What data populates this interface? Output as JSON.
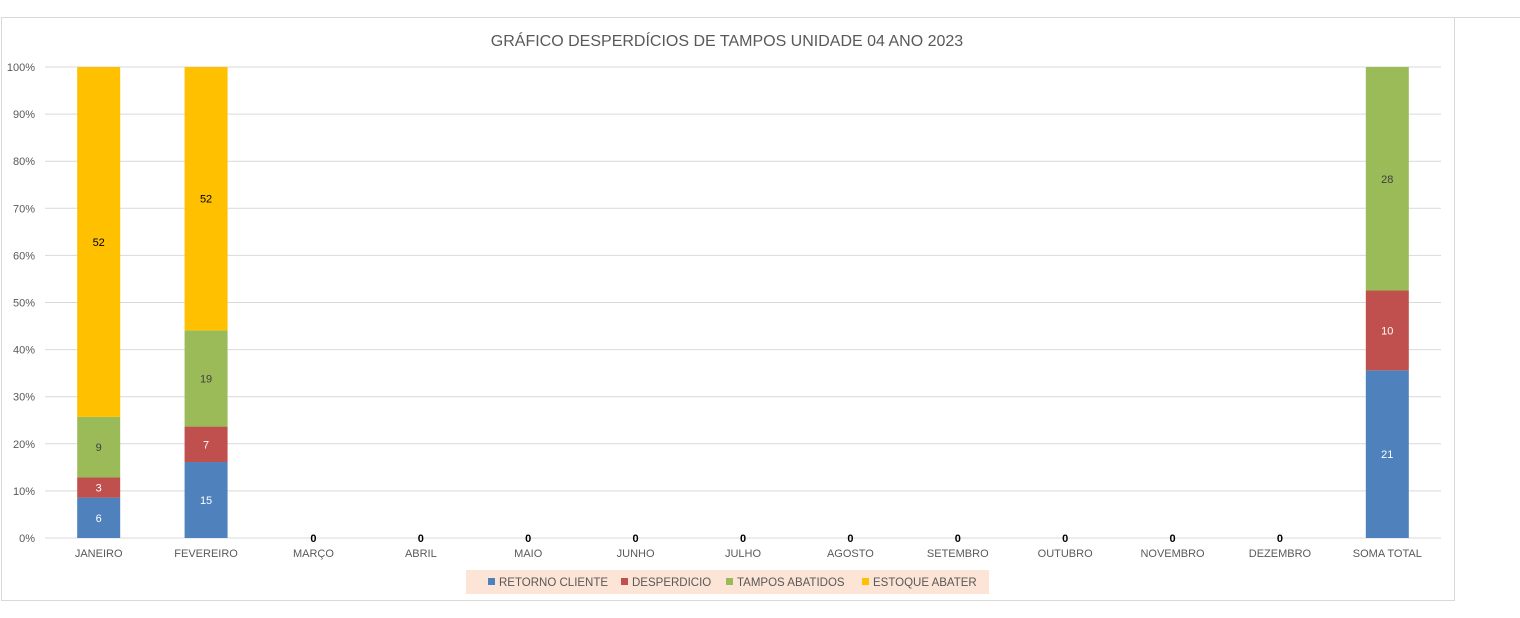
{
  "chart_data": {
    "type": "bar",
    "stacking": "percent",
    "title": "GRÁFICO DESPERDÍCIOS DE TAMPOS UNIDADE 04 ANO 2023",
    "xlabel": "",
    "ylabel": "",
    "ylim": [
      0,
      100
    ],
    "y_ticks": [
      "0%",
      "10%",
      "20%",
      "30%",
      "40%",
      "50%",
      "60%",
      "70%",
      "80%",
      "90%",
      "100%"
    ],
    "grid": true,
    "legend_position": "bottom",
    "categories": [
      "JANEIRO",
      "FEVEREIRO",
      "MARÇO",
      "ABRIL",
      "MAIO",
      "JUNHO",
      "JULHO",
      "AGOSTO",
      "SETEMBRO",
      "OUTUBRO",
      "NOVEMBRO",
      "DEZEMBRO",
      "SOMA TOTAL"
    ],
    "series": [
      {
        "name": "RETORNO  CLIENTE",
        "color": "#4f81bd",
        "label_color": "#ffffff",
        "values": [
          6,
          15,
          0,
          0,
          0,
          0,
          0,
          0,
          0,
          0,
          0,
          0,
          21
        ]
      },
      {
        "name": "DESPERDICIO",
        "color": "#c0504d",
        "label_color": "#ffffff",
        "values": [
          3,
          7,
          0,
          0,
          0,
          0,
          0,
          0,
          0,
          0,
          0,
          0,
          10
        ]
      },
      {
        "name": "TAMPOS ABATIDOS",
        "color": "#9bbb59",
        "label_color": "#404040",
        "values": [
          9,
          19,
          0,
          0,
          0,
          0,
          0,
          0,
          0,
          0,
          0,
          0,
          28
        ]
      },
      {
        "name": "ESTOQUE  ABATER",
        "color": "#ffc000",
        "label_color": "#000000",
        "values": [
          52,
          52,
          0,
          0,
          0,
          0,
          0,
          0,
          0,
          0,
          0,
          0,
          0
        ]
      }
    ],
    "zero_label": "0",
    "colors": {
      "gridline": "#d9d9d9",
      "legend_background": "#fce4d6",
      "text": "#595959"
    }
  }
}
